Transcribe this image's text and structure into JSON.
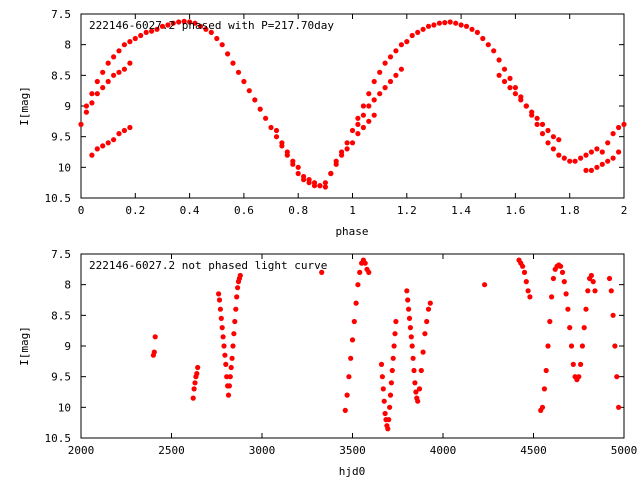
{
  "chart_data": [
    {
      "type": "scatter",
      "title": "222146-6027.2 phased with P=217.70day",
      "xlabel": "phase",
      "ylabel": "I[mag]",
      "xlim": [
        0,
        2
      ],
      "ylim": [
        10.5,
        7.5
      ],
      "y_inverted": true,
      "xticks": [
        "0",
        "0.2",
        "0.4",
        "0.6",
        "0.8",
        "1",
        "1.2",
        "1.4",
        "1.6",
        "1.8",
        "2"
      ],
      "yticks": [
        "7.5",
        "8",
        "8.5",
        "9",
        "9.5",
        "10",
        "10.5"
      ],
      "marker_color": "#ff0000",
      "series": [
        {
          "name": "main",
          "x": [
            0.0,
            0.02,
            0.04,
            0.06,
            0.08,
            0.1,
            0.12,
            0.14,
            0.16,
            0.18,
            0.2,
            0.22,
            0.24,
            0.26,
            0.28,
            0.3,
            0.32,
            0.34,
            0.36,
            0.38,
            0.4,
            0.42,
            0.44,
            0.46,
            0.48,
            0.5,
            0.52,
            0.54,
            0.56,
            0.58,
            0.6,
            0.62,
            0.64,
            0.66,
            0.68,
            0.7,
            0.72,
            0.74,
            0.76,
            0.78,
            0.8,
            0.82,
            0.84,
            0.86,
            0.88,
            0.9,
            0.92,
            0.94,
            0.96,
            0.98,
            1.0,
            1.02,
            1.04,
            1.06,
            1.08,
            1.1,
            1.12,
            1.14,
            1.16,
            1.18,
            1.2,
            1.22,
            1.24,
            1.26,
            1.28,
            1.3,
            1.32,
            1.34,
            1.36,
            1.38,
            1.4,
            1.42,
            1.44,
            1.46,
            1.48,
            1.5,
            1.52,
            1.54,
            1.56,
            1.58,
            1.6,
            1.62,
            1.64,
            1.66,
            1.68,
            1.7,
            1.72,
            1.74,
            1.76,
            1.78,
            1.8,
            1.82,
            1.84,
            1.86,
            1.88,
            1.9,
            1.92,
            1.94,
            1.96,
            1.98,
            2.0
          ],
          "y": [
            9.3,
            9.0,
            8.8,
            8.6,
            8.45,
            8.3,
            8.2,
            8.1,
            8.0,
            7.95,
            7.9,
            7.85,
            7.8,
            7.78,
            7.75,
            7.7,
            7.68,
            7.65,
            7.63,
            7.62,
            7.63,
            7.65,
            7.7,
            7.75,
            7.8,
            7.9,
            8.0,
            8.15,
            8.3,
            8.45,
            8.6,
            8.75,
            8.9,
            9.05,
            9.2,
            9.35,
            9.5,
            9.65,
            9.8,
            9.95,
            10.1,
            10.2,
            10.25,
            10.3,
            10.3,
            10.25,
            10.1,
            9.95,
            9.8,
            9.6,
            9.4,
            9.2,
            9.0,
            8.8,
            8.6,
            8.45,
            8.3,
            8.2,
            8.1,
            8.0,
            7.95,
            7.85,
            7.8,
            7.75,
            7.7,
            7.68,
            7.65,
            7.64,
            7.63,
            7.65,
            7.68,
            7.7,
            7.75,
            7.8,
            7.9,
            8.0,
            8.1,
            8.25,
            8.4,
            8.55,
            8.7,
            8.85,
            9.0,
            9.15,
            9.3,
            9.45,
            9.6,
            9.7,
            9.8,
            9.85,
            9.9,
            9.9,
            9.85,
            9.8,
            9.75,
            9.7,
            9.75,
            9.6,
            9.45,
            9.35,
            9.3
          ]
        },
        {
          "name": "branch-a",
          "x": [
            0.02,
            0.04,
            0.06,
            0.08,
            0.1,
            0.12,
            0.14,
            0.16,
            0.18,
            1.02,
            1.04,
            1.06,
            1.08,
            1.1,
            1.12,
            1.14,
            1.16,
            1.18,
            1.54,
            1.56,
            1.58,
            1.6,
            1.62,
            1.64,
            1.66,
            1.68,
            1.7,
            1.72,
            1.74,
            1.76
          ],
          "y": [
            9.1,
            8.95,
            8.8,
            8.7,
            8.6,
            8.5,
            8.45,
            8.4,
            8.3,
            9.3,
            9.15,
            9.0,
            8.9,
            8.8,
            8.7,
            8.6,
            8.5,
            8.4,
            8.5,
            8.6,
            8.7,
            8.8,
            8.9,
            9.0,
            9.1,
            9.2,
            9.3,
            9.4,
            9.5,
            9.55
          ]
        },
        {
          "name": "branch-b",
          "x": [
            0.04,
            0.06,
            0.08,
            0.1,
            0.12,
            0.14,
            0.16,
            0.18,
            1.86,
            1.88,
            1.9,
            1.92,
            1.94,
            1.96,
            1.98
          ],
          "y": [
            9.8,
            9.7,
            9.65,
            9.6,
            9.55,
            9.45,
            9.4,
            9.35,
            10.05,
            10.05,
            10.0,
            9.95,
            9.9,
            9.85,
            9.75
          ]
        },
        {
          "name": "scatter-lower",
          "x": [
            0.72,
            0.74,
            0.76,
            0.78,
            0.8,
            0.82,
            0.84,
            0.86,
            0.88,
            0.9,
            0.92,
            0.94,
            0.96,
            0.98,
            1.0,
            1.02,
            1.04,
            1.06,
            1.08
          ],
          "y": [
            9.4,
            9.6,
            9.75,
            9.9,
            10.0,
            10.15,
            10.2,
            10.25,
            10.3,
            10.32,
            10.1,
            9.9,
            9.75,
            9.7,
            9.6,
            9.45,
            9.35,
            9.25,
            9.15
          ]
        }
      ]
    },
    {
      "type": "scatter",
      "title": "222146-6027.2 not phased light curve",
      "xlabel": "hjd0",
      "ylabel": "I[mag]",
      "xlim": [
        2000,
        5000
      ],
      "ylim": [
        10.5,
        7.5
      ],
      "y_inverted": true,
      "xticks": [
        "2000",
        "2500",
        "3000",
        "3500",
        "4000",
        "4500",
        "5000"
      ],
      "yticks": [
        "7.5",
        "8",
        "8.5",
        "9",
        "9.5",
        "10",
        "10.5"
      ],
      "marker_color": "#ff0000",
      "series": [
        {
          "name": "observations",
          "x": [
            2400,
            2405,
            2410,
            2620,
            2625,
            2630,
            2635,
            2640,
            2645,
            2760,
            2765,
            2770,
            2775,
            2780,
            2785,
            2790,
            2795,
            2800,
            2805,
            2810,
            2815,
            2820,
            2825,
            2830,
            2835,
            2840,
            2845,
            2850,
            2855,
            2860,
            2865,
            2870,
            2875,
            2880,
            3330,
            3460,
            3470,
            3480,
            3490,
            3500,
            3510,
            3520,
            3530,
            3540,
            3550,
            3560,
            3570,
            3580,
            3590,
            3660,
            3665,
            3670,
            3675,
            3680,
            3685,
            3690,
            3695,
            3700,
            3705,
            3710,
            3715,
            3720,
            3725,
            3730,
            3735,
            3740,
            3800,
            3805,
            3810,
            3815,
            3820,
            3825,
            3830,
            3835,
            3840,
            3845,
            3850,
            3855,
            3860,
            3870,
            3880,
            3890,
            3900,
            3910,
            3920,
            3930,
            4230,
            4420,
            4430,
            4440,
            4450,
            4460,
            4470,
            4480,
            4540,
            4550,
            4560,
            4570,
            4580,
            4590,
            4600,
            4610,
            4620,
            4630,
            4640,
            4650,
            4660,
            4670,
            4680,
            4690,
            4700,
            4710,
            4720,
            4730,
            4740,
            4750,
            4760,
            4770,
            4780,
            4790,
            4800,
            4810,
            4820,
            4830,
            4840,
            4920,
            4930,
            4940,
            4950,
            4960,
            4970
          ],
          "y": [
            9.15,
            9.1,
            8.85,
            9.85,
            9.7,
            9.6,
            9.5,
            9.45,
            9.35,
            8.15,
            8.25,
            8.4,
            8.55,
            8.7,
            8.85,
            9.0,
            9.15,
            9.3,
            9.5,
            9.65,
            9.8,
            9.65,
            9.5,
            9.35,
            9.2,
            9.0,
            8.8,
            8.6,
            8.4,
            8.2,
            8.05,
            7.95,
            7.9,
            7.85,
            7.8,
            10.05,
            9.8,
            9.5,
            9.2,
            8.9,
            8.6,
            8.3,
            8.0,
            7.8,
            7.65,
            7.6,
            7.65,
            7.75,
            7.8,
            9.3,
            9.5,
            9.7,
            9.9,
            10.1,
            10.2,
            10.3,
            10.35,
            10.2,
            10.0,
            9.8,
            9.6,
            9.4,
            9.2,
            9.0,
            8.8,
            8.6,
            8.1,
            8.25,
            8.4,
            8.55,
            8.7,
            8.85,
            9.0,
            9.2,
            9.4,
            9.6,
            9.75,
            9.85,
            9.9,
            9.7,
            9.4,
            9.1,
            8.8,
            8.6,
            8.4,
            8.3,
            8.0,
            7.6,
            7.65,
            7.7,
            7.8,
            7.95,
            8.1,
            8.2,
            10.05,
            10.0,
            9.7,
            9.4,
            9.0,
            8.6,
            8.2,
            7.9,
            7.75,
            7.7,
            7.68,
            7.7,
            7.8,
            7.95,
            8.15,
            8.4,
            8.7,
            9.0,
            9.3,
            9.5,
            9.55,
            9.5,
            9.3,
            9.0,
            8.7,
            8.4,
            8.1,
            7.9,
            7.85,
            7.95,
            8.1,
            7.9,
            8.1,
            8.5,
            9.0,
            9.5,
            10.0
          ]
        }
      ]
    }
  ]
}
